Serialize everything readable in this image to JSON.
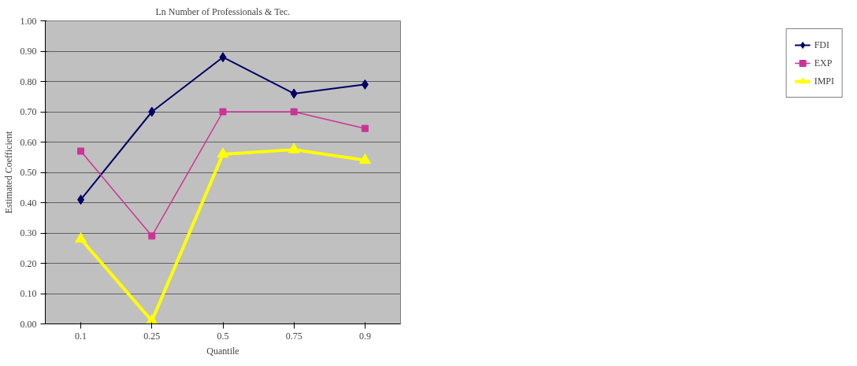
{
  "chart_data": {
    "type": "line",
    "title": "Ln Number of Professionals & Tec.",
    "xlabel": "Quantile",
    "ylabel": "Estimated Coefficient",
    "categories": [
      "0.1",
      "0.25",
      "0.5",
      "0.75",
      "0.9"
    ],
    "series": [
      {
        "name": "FDI",
        "color": "#000066",
        "marker": "diamond",
        "values": [
          0.41,
          0.7,
          0.88,
          0.76,
          0.79
        ]
      },
      {
        "name": "EXP",
        "color": "#cc3399",
        "marker": "square",
        "values": [
          0.57,
          0.29,
          0.7,
          0.7,
          0.645
        ]
      },
      {
        "name": "IMPI",
        "color": "#ffff00",
        "marker": "triangle",
        "values": [
          0.28,
          0.01,
          0.56,
          0.575,
          0.54
        ]
      }
    ],
    "ylim": [
      0,
      1
    ],
    "yticks": [
      {
        "value": 0,
        "label": "0.00"
      },
      {
        "value": 0.1,
        "label": "0.10"
      },
      {
        "value": 0.2,
        "label": "0.20"
      },
      {
        "value": 0.3,
        "label": "0.30"
      },
      {
        "value": 0.4,
        "label": "0.40"
      },
      {
        "value": 0.5,
        "label": "0.50"
      },
      {
        "value": 0.6,
        "label": "0.60"
      },
      {
        "value": 0.7,
        "label": "0.70"
      },
      {
        "value": 0.8,
        "label": "0.80"
      },
      {
        "value": 0.9,
        "label": "0.90"
      },
      {
        "value": 1,
        "label": "1.00"
      }
    ],
    "grid": "y",
    "legend": "right",
    "line_style": "solid"
  }
}
